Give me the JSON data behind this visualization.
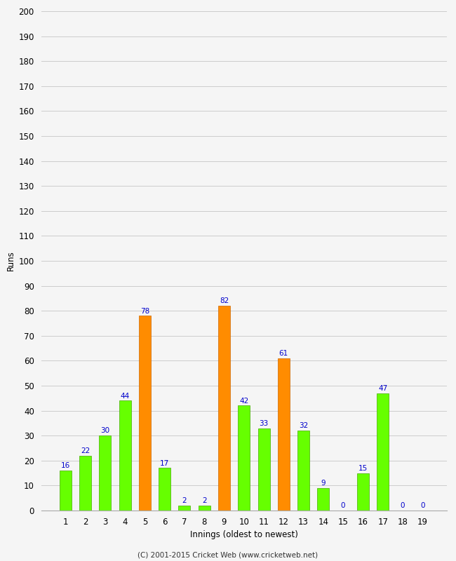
{
  "innings": [
    1,
    2,
    3,
    4,
    5,
    6,
    7,
    8,
    9,
    10,
    11,
    12,
    13,
    14,
    15,
    16,
    17,
    18,
    19
  ],
  "values": [
    16,
    22,
    30,
    44,
    78,
    17,
    2,
    2,
    82,
    42,
    33,
    61,
    32,
    9,
    0,
    15,
    47,
    0,
    0
  ],
  "colors": [
    "#66ff00",
    "#66ff00",
    "#66ff00",
    "#66ff00",
    "#ff8c00",
    "#66ff00",
    "#66ff00",
    "#66ff00",
    "#ff8c00",
    "#66ff00",
    "#66ff00",
    "#ff8c00",
    "#66ff00",
    "#66ff00",
    "#66ff00",
    "#66ff00",
    "#66ff00",
    "#66ff00",
    "#66ff00"
  ],
  "xlabel": "Innings (oldest to newest)",
  "ylabel": "Runs",
  "ylim": [
    0,
    200
  ],
  "yticks": [
    0,
    10,
    20,
    30,
    40,
    50,
    60,
    70,
    80,
    90,
    100,
    110,
    120,
    130,
    140,
    150,
    160,
    170,
    180,
    190,
    200
  ],
  "label_color": "#0000cc",
  "label_fontsize": 7.5,
  "axis_fontsize": 8.5,
  "footer": "(C) 2001-2015 Cricket Web (www.cricketweb.net)",
  "background_color": "#f5f5f5",
  "grid_color": "#cccccc"
}
